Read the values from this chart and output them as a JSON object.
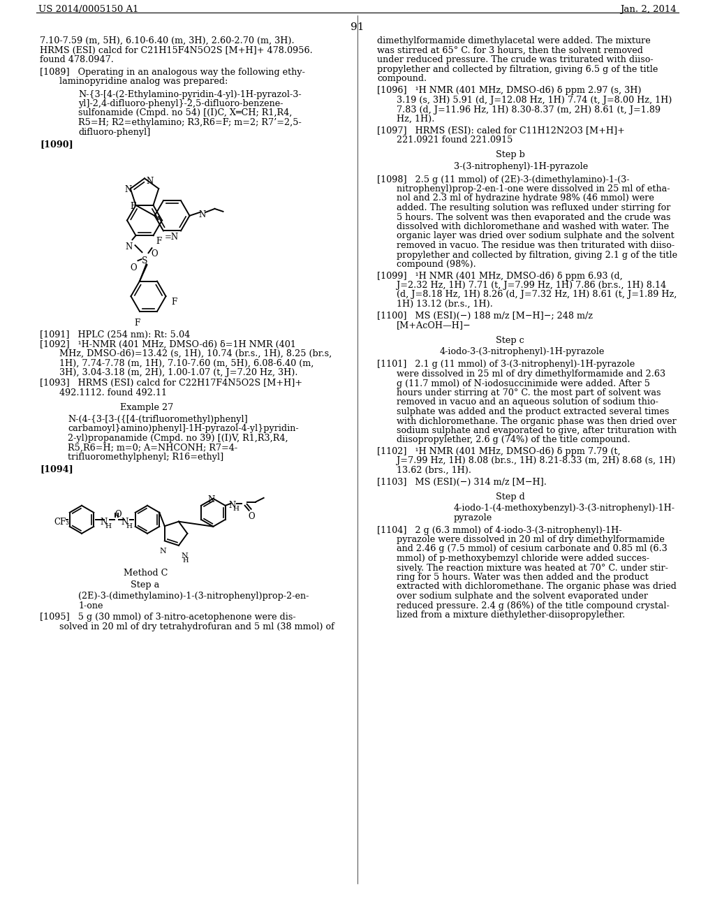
{
  "header_left": "US 2014/0005150 A1",
  "header_right": "Jan. 2, 2014",
  "page_number": "91",
  "left_col": {
    "intro_text_lines": [
      "7.10-7.59 (m, 5H), 6.10-6.40 (m, 3H), 2.60-2.70 (m, 3H).",
      "HRMS (ESI) calcd for C21H15F4N5O2S [M+H]+ 478.0956.",
      "found 478.0947."
    ],
    "p1089_lines": [
      "[1089]   Operating in an analogous way the following ethy-",
      "laminopyridine analog was prepared:"
    ],
    "compound54_lines": [
      "N-{3-[4-(2-Ethylamino-pyridin-4-yl)-1H-pyrazol-3-",
      "yl]-2,4-difluoro-phenyl}-2,5-difluoro-benzene-",
      "sulfonamide (Cmpd. no 54) [(I)C, X═CH; R1,R4,",
      "R5=H; R2=ethylamino; R3,R6=F; m=2; R7’=2,5-",
      "difluoro-phenyl]"
    ],
    "p1090": "[1090]",
    "p1091": "[1091]   HPLC (254 nm): Rt: 5.04",
    "p1092_lines": [
      "[1092]   ¹H-NMR (401 MHz, DMSO-d6) δ=1H NMR (401",
      "MHz, DMSO-d6)=13.42 (s, 1H), 10.74 (br.s., 1H), 8.25 (br.s,",
      "1H), 7.74-7.78 (m, 1H), 7.10-7.60 (m, 5H), 6.08-6.40 (m,",
      "3H), 3.04-3.18 (m, 2H), 1.00-1.07 (t, J=7.20 Hz, 3H)."
    ],
    "p1093_lines": [
      "[1093]   HRMS (ESI) calcd for C22H17F4N5O2S [M+H]+",
      "492.1112. found 492.11"
    ],
    "example27": "Example 27",
    "ex27_compound_lines": [
      "N-(4-{3-[3-({[4-(trifluoromethyl)phenyl]",
      "carbamoyl}amino)phenyl]-1H-pyrazol-4-yl}pyridin-",
      "2-yl)propanamide (Cmpd. no 39) [(I)V, R1,R3,R4,",
      "R5,R6=H; m=0; A=NHCONH; R7=4-",
      "trifluoromethylphenyl; R16=ethyl]"
    ],
    "p1094": "[1094]",
    "method_c": "Method C",
    "step_a": "Step a",
    "step_a_cpd_lines": [
      "(2E)-3-(dimethylamino)-1-(3-nitrophenyl)prop-2-en-",
      "1-one"
    ],
    "p1095_lines": [
      "[1095]   5 g (30 mmol) of 3-nitro-acetophenone were dis-",
      "solved in 20 ml of dry tetrahydrofuran and 5 ml (38 mmol) of"
    ]
  },
  "right_col": {
    "p1095_cont_lines": [
      "dimethylformamide dimethylacetal were added. The mixture",
      "was stirred at 65° C. for 3 hours, then the solvent removed",
      "under reduced pressure. The crude was triturated with diiso-",
      "propylether and collected by filtration, giving 6.5 g of the title",
      "compound."
    ],
    "p1096_lines": [
      "[1096]   ¹H NMR (401 MHz, DMSO-d6) δ ppm 2.97 (s, 3H)",
      "3.19 (s, 3H) 5.91 (d, J=12.08 Hz, 1H) 7.74 (t, J=8.00 Hz, 1H)",
      "7.83 (d, J=11.96 Hz, 1H) 8.30-8.37 (m, 2H) 8.61 (t, J=1.89",
      "Hz, 1H)."
    ],
    "p1097_lines": [
      "[1097]   HRMS (ESI): caled for C11H12N2O3 [M+H]+",
      "221.0921 found 221.0915"
    ],
    "step_b": "Step b",
    "step_b_cpd": "3-(3-nitrophenyl)-1H-pyrazole",
    "p1098_lines": [
      "[1098]   2.5 g (11 mmol) of (2E)-3-(dimethylamino)-1-(3-",
      "nitrophenyl)prop-2-en-1-one were dissolved in 25 ml of etha-",
      "nol and 2.3 ml of hydrazine hydrate 98% (46 mmol) were",
      "added. The resulting solution was refluxed under stirring for",
      "5 hours. The solvent was then evaporated and the crude was",
      "dissolved with dichloromethane and washed with water. The",
      "organic layer was dried over sodium sulphate and the solvent",
      "removed in vacuo. The residue was then triturated with diiso-",
      "propylether and collected by filtration, giving 2.1 g of the title",
      "compound (98%)."
    ],
    "p1099_lines": [
      "[1099]   ¹H NMR (401 MHz, DMSO-d6) δ ppm 6.93 (d,",
      "J=2.32 Hz, 1H) 7.71 (t, J=7.99 Hz, 1H) 7.86 (br.s., 1H) 8.14",
      "(d, J=8.18 Hz, 1H) 8.26 (d, J=7.32 Hz, 1H) 8.61 (t, J=1.89 Hz,",
      "1H) 13.12 (br.s., 1H)."
    ],
    "p1100_lines": [
      "[1100]   MS (ESI)(−) 188 m/z [M−H]−; 248 m/z",
      "[M+AcOH—H]−"
    ],
    "step_c": "Step c",
    "step_c_cpd": "4-iodo-3-(3-nitrophenyl)-1H-pyrazole",
    "p1101_lines": [
      "[1101]   2.1 g (11 mmol) of 3-(3-nitrophenyl)-1H-pyrazole",
      "were dissolved in 25 ml of dry dimethylformamide and 2.63",
      "g (11.7 mmol) of N-iodosuccinimide were added. After 5",
      "hours under stirring at 70° C. the most part of solvent was",
      "removed in vacuo and an aqueous solution of sodium thio-",
      "sulphate was added and the product extracted several times",
      "with dichloromethane. The organic phase was then dried over",
      "sodium sulphate and evaporated to give, after trituration with",
      "diisopropylether, 2.6 g (74%) of the title compound."
    ],
    "p1102_lines": [
      "[1102]   ¹H NMR (401 MHz, DMSO-d6) δ ppm 7.79 (t,",
      "J=7.99 Hz, 1H) 8.08 (br.s., 1H) 8.21-8.33 (m, 2H) 8.68 (s, 1H)",
      "13.62 (brs., 1H)."
    ],
    "p1103": "[1103]   MS (ESI)(−) 314 m/z [M−H].",
    "step_d": "Step d",
    "step_d_cpd_lines": [
      "4-iodo-1-(4-methoxybenzyl)-3-(3-nitrophenyl)-1H-",
      "pyrazole"
    ],
    "p1104_lines": [
      "[1104]   2 g (6.3 mmol) of 4-iodo-3-(3-nitrophenyl)-1H-",
      "pyrazole were dissolved in 20 ml of dry dimethylformamide",
      "and 2.46 g (7.5 mmol) of cesium carbonate and 0.85 ml (6.3",
      "mmol) of p-methoxybemzyl chloride were added succes-",
      "sively. The reaction mixture was heated at 70° C. under stir-",
      "ring for 5 hours. Water was then added and the product",
      "extracted with dichloromethane. The organic phase was dried",
      "over sodium sulphate and the solvent evaporated under",
      "reduced pressure. 2.4 g (86%) of the title compound crystal-",
      "lized from a mixture diethylether-diisopropylether."
    ]
  }
}
